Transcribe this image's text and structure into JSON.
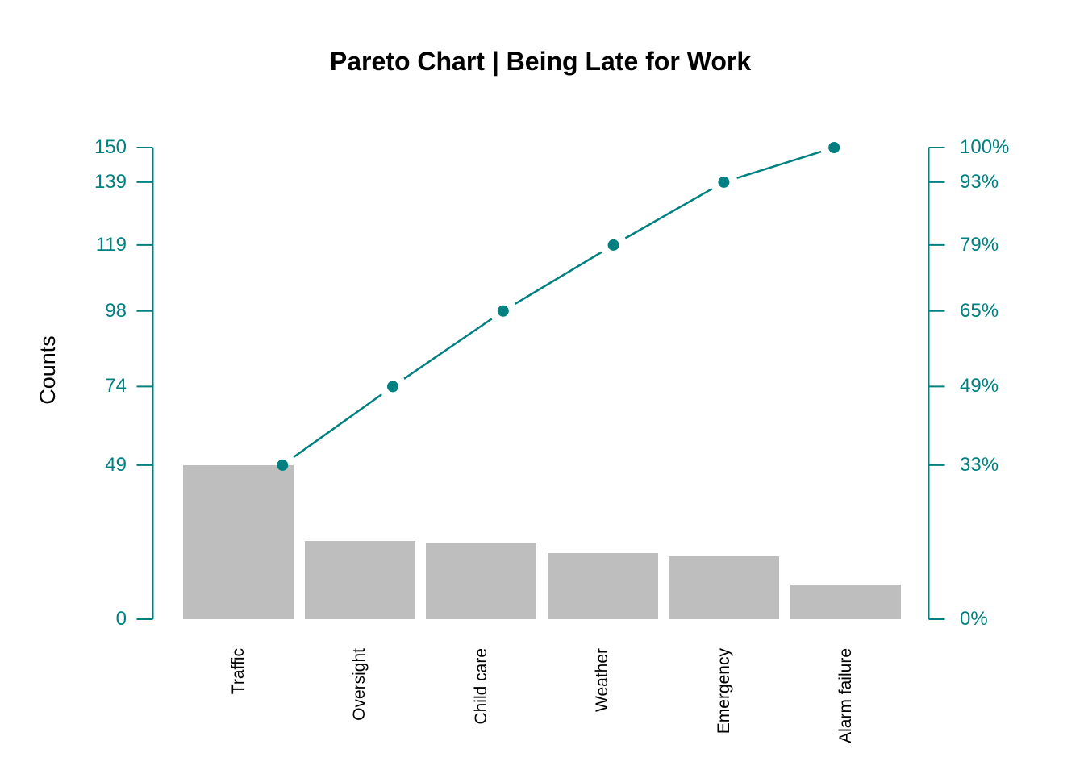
{
  "chart_data": {
    "type": "bar",
    "title": "Pareto Chart | Being Late for Work",
    "ylabel": "Counts",
    "xlabel": "",
    "categories": [
      "Traffic",
      "Oversight",
      "Child care",
      "Weather",
      "Emergency",
      "Alarm failure"
    ],
    "values": [
      49,
      25,
      24,
      21,
      20,
      11
    ],
    "cumulative_counts": [
      49,
      74,
      98,
      119,
      139,
      150
    ],
    "cumulative_percents": [
      "33%",
      "49%",
      "65%",
      "79%",
      "93%",
      "100%"
    ],
    "left_axis_tick_values": [
      150,
      139,
      119,
      98,
      74,
      49,
      0
    ],
    "left_axis_tick_labels": [
      "150",
      "139",
      "119",
      "98",
      "74",
      "49",
      "0"
    ],
    "right_axis_tick_labels": [
      "100%",
      "93%",
      "79%",
      "65%",
      "49%",
      "33%",
      "0%"
    ],
    "ylim": [
      0,
      150
    ],
    "grid": false,
    "legend": "none",
    "colors": {
      "bar_fill": "#BEBEBE",
      "line_and_axes": "#008080",
      "title_text": "#000000",
      "category_text": "#000000",
      "background": "#ffffff"
    }
  }
}
